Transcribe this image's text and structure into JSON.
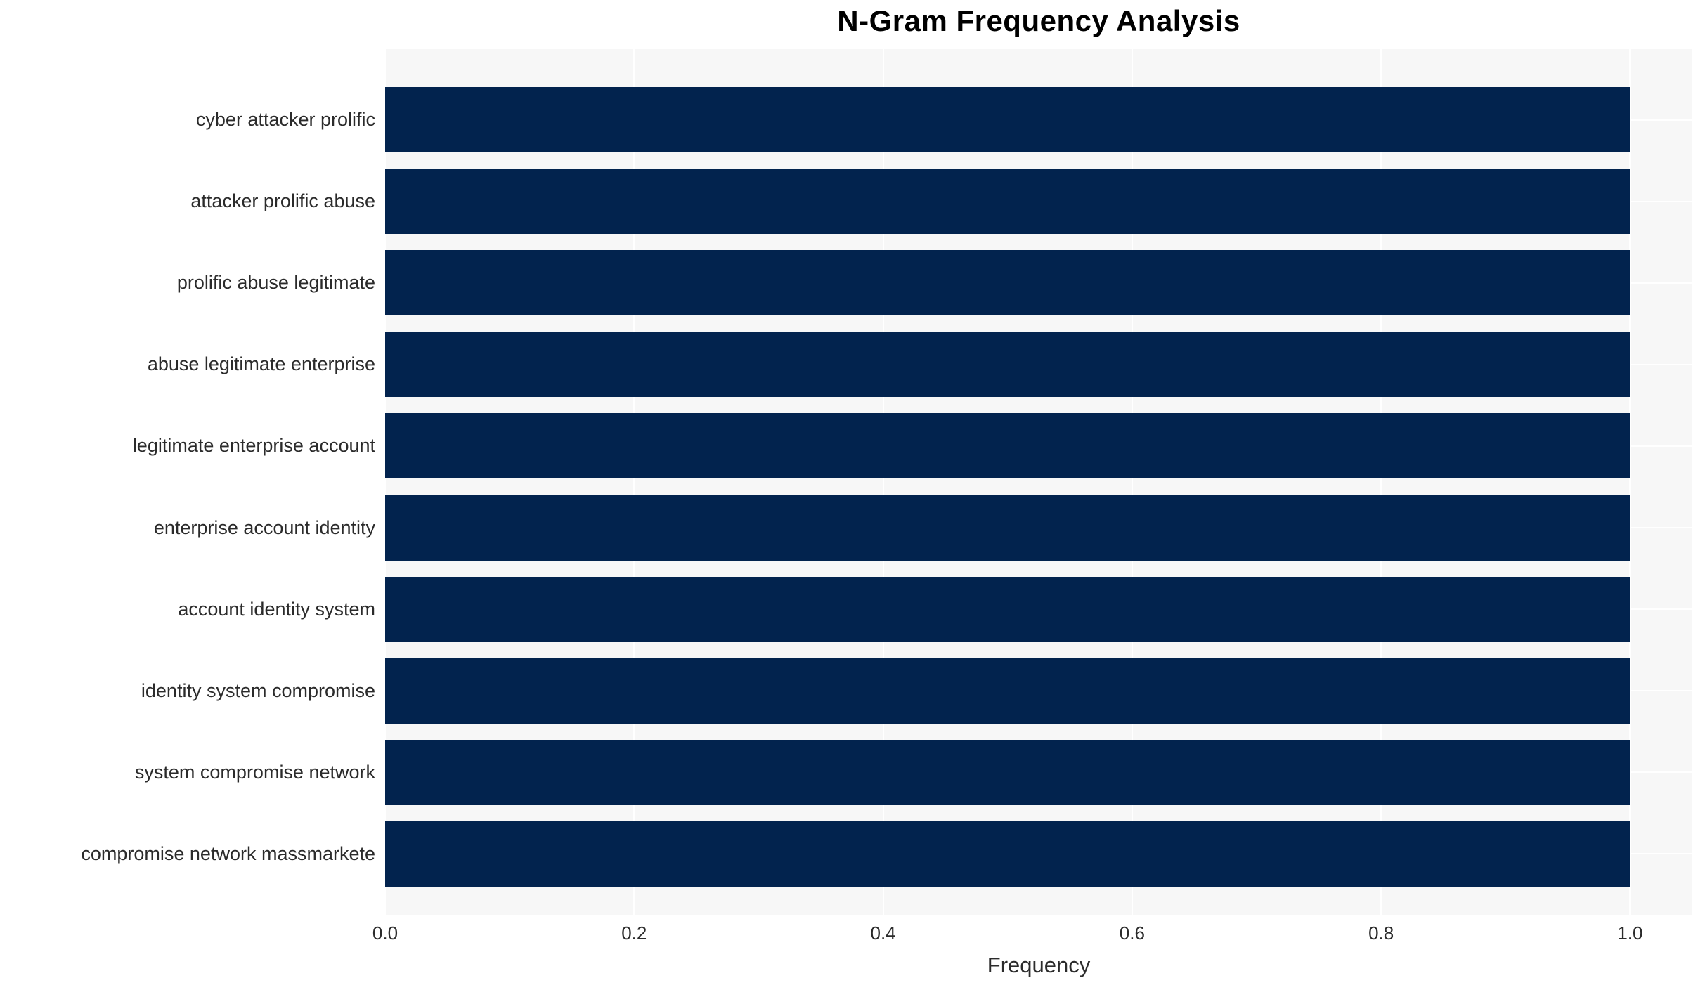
{
  "chart_data": {
    "type": "bar",
    "orientation": "horizontal",
    "title": "N-Gram Frequency Analysis",
    "xlabel": "Frequency",
    "ylabel": "",
    "xlim": [
      0,
      1.05
    ],
    "xticks": [
      {
        "label": "0.0",
        "value": 0.0
      },
      {
        "label": "0.2",
        "value": 0.2
      },
      {
        "label": "0.4",
        "value": 0.4
      },
      {
        "label": "0.6",
        "value": 0.6
      },
      {
        "label": "0.8",
        "value": 0.8
      },
      {
        "label": "1.0",
        "value": 1.0
      }
    ],
    "grid": true,
    "legend": false,
    "categories": [
      "cyber attacker prolific",
      "attacker prolific abuse",
      "prolific abuse legitimate",
      "abuse legitimate enterprise",
      "legitimate enterprise account",
      "enterprise account identity",
      "account identity system",
      "identity system compromise",
      "system compromise network",
      "compromise network massmarkete"
    ],
    "values": [
      1.0,
      1.0,
      1.0,
      1.0,
      1.0,
      1.0,
      1.0,
      1.0,
      1.0,
      1.0
    ],
    "colors": {
      "bar": "#02234e",
      "plot_background": "#f7f7f7",
      "figure_background": "#ffffff",
      "gridline": "#ffffff",
      "tick_text": "#2b2b2b",
      "title_text": "#000000"
    }
  }
}
